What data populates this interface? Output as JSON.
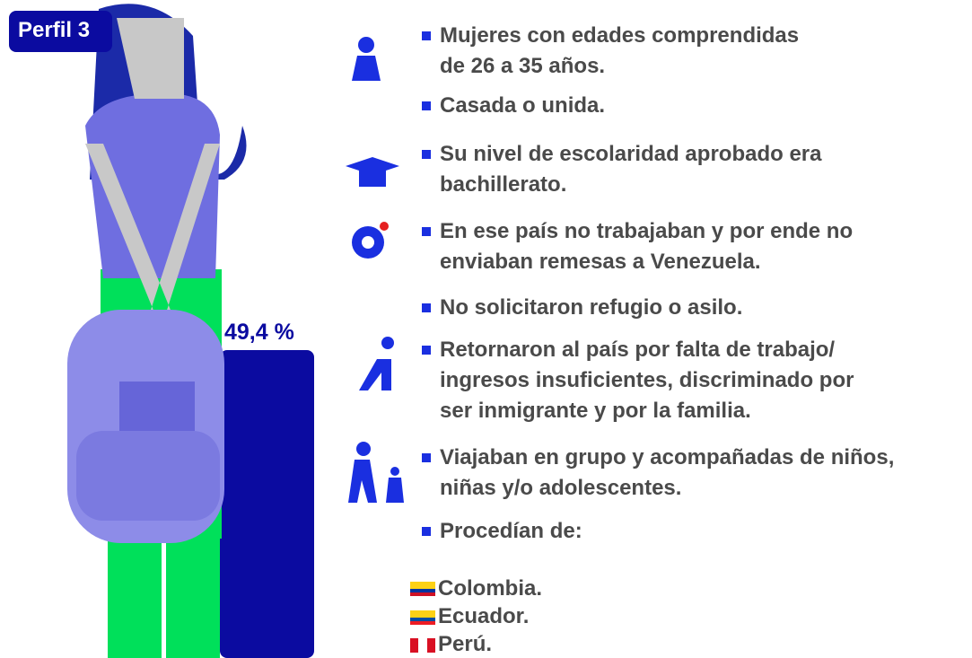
{
  "profile": {
    "label": "Perfil 3",
    "percentage": "49,4 %"
  },
  "items": [
    {
      "lines": [
        "Mujeres con edades comprendidas",
        "de 26 a 35 años."
      ]
    },
    {
      "lines": [
        "Casada o unida."
      ]
    },
    {
      "lines": [
        "Su nivel de escolaridad aprobado era",
        "bachillerato."
      ]
    },
    {
      "lines": [
        "En ese país no trabajaban y por ende no",
        "enviaban remesas a Venezuela."
      ]
    },
    {
      "lines": [
        "No solicitaron refugio o asilo."
      ]
    },
    {
      "lines": [
        "Retornaron al país por falta de trabajo/",
        "ingresos insuficientes, discriminado por",
        "ser inmigrante y por la familia."
      ]
    },
    {
      "lines": [
        "Viajaban en grupo y acompañadas de niños,",
        "niñas y/o adolescentes."
      ]
    },
    {
      "lines": [
        "Procedían de:"
      ]
    }
  ],
  "countries": [
    "Colombia.",
    "Ecuador.",
    "Perú."
  ]
}
